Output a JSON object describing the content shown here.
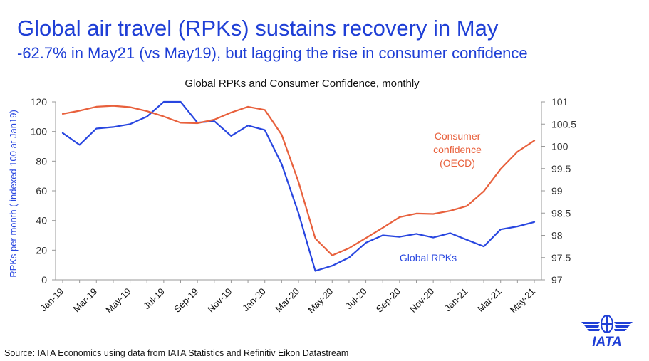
{
  "header": {
    "title": "Global air travel (RPKs) sustains recovery in May",
    "subtitle": "-62.7% in May21 (vs May19), but lagging the rise in consumer confidence"
  },
  "footer": {
    "source": "Source: IATA Economics using data from IATA Statistics and Refinitiv Eikon Datastream"
  },
  "logo": {
    "text": "IATA",
    "icon": "iata-globe-icon",
    "color": "#1f3fd6"
  },
  "colors": {
    "rpk": "#2846e0",
    "confidence": "#e8603c",
    "axis": "#999999"
  },
  "chart_data": {
    "type": "line",
    "title": "Global RPKs and Consumer Confidence, monthly",
    "x": [
      "Jan-19",
      "Feb-19",
      "Mar-19",
      "Apr-19",
      "May-19",
      "Jun-19",
      "Jul-19",
      "Aug-19",
      "Sep-19",
      "Oct-19",
      "Nov-19",
      "Dec-19",
      "Jan-20",
      "Feb-20",
      "Mar-20",
      "Apr-20",
      "May-20",
      "Jun-20",
      "Jul-20",
      "Aug-20",
      "Sep-20",
      "Oct-20",
      "Nov-20",
      "Dec-20",
      "Jan-21",
      "Feb-21",
      "Mar-21",
      "Apr-21",
      "May-21"
    ],
    "x_tick_labels": [
      "Jan-19",
      "Mar-19",
      "May-19",
      "Jul-19",
      "Sep-19",
      "Nov-19",
      "Jan-20",
      "Mar-20",
      "May-20",
      "Jul-20",
      "Sep-20",
      "Nov-20",
      "Jan-21",
      "Mar-21",
      "May-21"
    ],
    "ylabel": "RPKs per month ( indexed 100 at Jan19)",
    "ylim": [
      0,
      120
    ],
    "y_ticks": [
      0,
      20,
      40,
      60,
      80,
      100,
      120
    ],
    "y2lim": [
      97,
      101
    ],
    "y2_ticks": [
      "97",
      "97.5",
      "98",
      "98.5",
      "99",
      "99.5",
      "100",
      "100.5",
      "101"
    ],
    "grid": false,
    "series": [
      {
        "name": "Global RPKs",
        "axis": "left",
        "values": [
          99,
          91,
          102,
          103,
          105,
          110,
          120,
          120,
          106,
          107,
          97,
          104,
          101,
          78,
          45,
          6,
          9.5,
          15,
          25,
          30,
          29,
          31,
          28.5,
          31.5,
          27,
          22.5,
          34,
          36,
          39
        ]
      },
      {
        "name": "Consumer confidence (OECD)",
        "axis": "right",
        "label_lines": [
          "Consumer",
          "confidence",
          "(OECD)"
        ],
        "values": [
          100.73,
          100.8,
          100.89,
          100.91,
          100.88,
          100.79,
          100.67,
          100.53,
          100.52,
          100.6,
          100.76,
          100.89,
          100.82,
          100.26,
          99.2,
          97.93,
          97.55,
          97.71,
          97.94,
          98.17,
          98.41,
          98.49,
          98.48,
          98.55,
          98.66,
          98.99,
          99.49,
          99.88,
          100.13
        ]
      }
    ]
  }
}
